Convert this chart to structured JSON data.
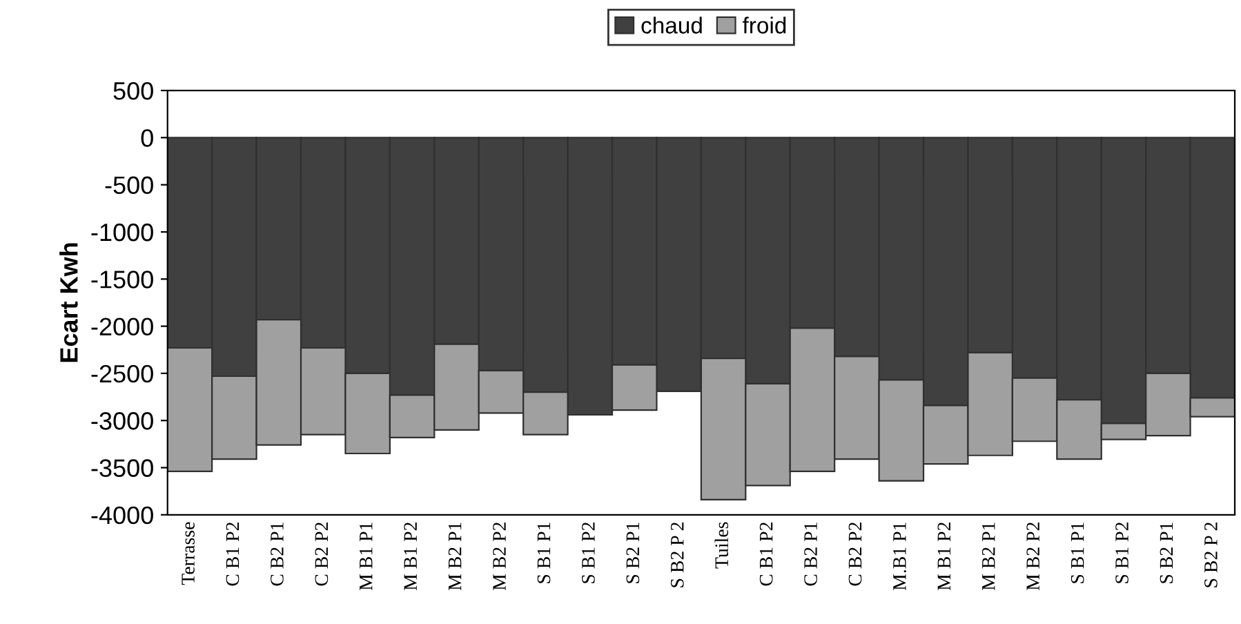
{
  "chart_data": {
    "type": "bar",
    "stacked": true,
    "ylabel": "Ecart Kwh",
    "categories": [
      "Terrasse",
      "C B1 P2",
      "C B2 P1",
      "C B2 P2",
      "M B1 P1",
      "M B1 P2",
      "M B2 P1",
      "M B2 P2",
      "S B1 P1",
      "S B1 P2",
      "S B2 P1",
      "S B2 P 2",
      "Tuiles",
      "C B1 P2",
      "C B2 P1",
      "C B2 P2",
      "M.B1 P1",
      "M B1 P2",
      "M B2 P1",
      "M B2 P2",
      "S B1 P1",
      "S B1 P2",
      "S B2 P1",
      "S B2 P 2"
    ],
    "series": [
      {
        "name": "chaud",
        "color": "#404040",
        "values": [
          -2230,
          -2530,
          -1930,
          -2230,
          -2500,
          -2730,
          -2190,
          -2470,
          -2700,
          -2940,
          -2410,
          -2690,
          -2340,
          -2610,
          -2020,
          -2320,
          -2570,
          -2840,
          -2280,
          -2550,
          -2780,
          -3030,
          -2500,
          -2760
        ]
      },
      {
        "name": "froid",
        "color": "#a0a0a0",
        "values": [
          -1310,
          -880,
          -1330,
          -920,
          -850,
          -450,
          -910,
          -450,
          -450,
          null,
          -480,
          null,
          -1500,
          -1080,
          -1520,
          -1090,
          -1070,
          -620,
          -1090,
          -670,
          -630,
          -170,
          -660,
          -200
        ]
      }
    ],
    "ylim": [
      -4000,
      500
    ],
    "yticks": [
      -4000,
      -3500,
      -3000,
      -2500,
      -2000,
      -1500,
      -1000,
      -500,
      0,
      500
    ],
    "grid": false,
    "legend": "top"
  }
}
